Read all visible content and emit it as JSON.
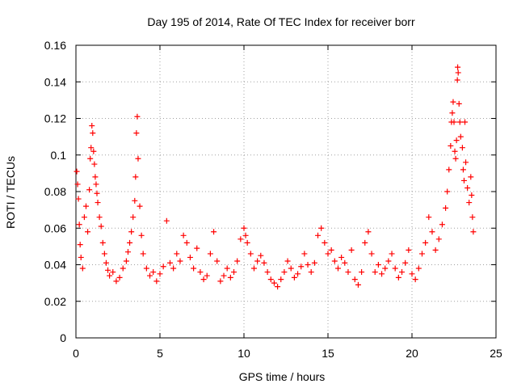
{
  "chart_data": {
    "type": "scatter",
    "title": "Day 195 of 2014, Rate Of TEC Index for receiver borr",
    "xlabel": "GPS time / hours",
    "ylabel": "ROTI / TECUs",
    "xlim": [
      0,
      25
    ],
    "ylim": [
      0,
      0.16
    ],
    "xticks": [
      0,
      5,
      10,
      15,
      20,
      25
    ],
    "xtick_labels": [
      "0",
      "5",
      "10",
      "15",
      "20",
      "25"
    ],
    "yticks": [
      0,
      0.02,
      0.04,
      0.06,
      0.08,
      0.1,
      0.12,
      0.14,
      0.16
    ],
    "ytick_labels": [
      "0",
      "0.02",
      "0.04",
      "0.06",
      "0.08",
      "0.1",
      "0.12",
      "0.14",
      "0.16"
    ],
    "grid": true,
    "marker": "+",
    "color": "#ff0000",
    "series": [
      {
        "name": "ROTI",
        "points": [
          [
            0.05,
            0.091
          ],
          [
            0.1,
            0.084
          ],
          [
            0.15,
            0.076
          ],
          [
            0.2,
            0.062
          ],
          [
            0.25,
            0.051
          ],
          [
            0.3,
            0.044
          ],
          [
            0.4,
            0.038
          ],
          [
            0.5,
            0.066
          ],
          [
            0.6,
            0.072
          ],
          [
            0.7,
            0.058
          ],
          [
            0.8,
            0.081
          ],
          [
            0.85,
            0.098
          ],
          [
            0.9,
            0.104
          ],
          [
            0.95,
            0.116
          ],
          [
            1.0,
            0.112
          ],
          [
            1.05,
            0.102
          ],
          [
            1.1,
            0.095
          ],
          [
            1.15,
            0.088
          ],
          [
            1.2,
            0.084
          ],
          [
            1.25,
            0.079
          ],
          [
            1.3,
            0.074
          ],
          [
            1.4,
            0.066
          ],
          [
            1.5,
            0.061
          ],
          [
            1.6,
            0.052
          ],
          [
            1.7,
            0.046
          ],
          [
            1.8,
            0.041
          ],
          [
            1.9,
            0.037
          ],
          [
            2.0,
            0.034
          ],
          [
            2.2,
            0.036
          ],
          [
            2.4,
            0.031
          ],
          [
            2.6,
            0.033
          ],
          [
            2.8,
            0.038
          ],
          [
            3.0,
            0.042
          ],
          [
            3.1,
            0.047
          ],
          [
            3.2,
            0.052
          ],
          [
            3.3,
            0.058
          ],
          [
            3.4,
            0.066
          ],
          [
            3.5,
            0.075
          ],
          [
            3.55,
            0.088
          ],
          [
            3.6,
            0.112
          ],
          [
            3.65,
            0.121
          ],
          [
            3.7,
            0.098
          ],
          [
            3.8,
            0.072
          ],
          [
            3.9,
            0.056
          ],
          [
            4.0,
            0.046
          ],
          [
            4.2,
            0.038
          ],
          [
            4.4,
            0.034
          ],
          [
            4.6,
            0.036
          ],
          [
            4.8,
            0.031
          ],
          [
            5.0,
            0.035
          ],
          [
            5.2,
            0.039
          ],
          [
            5.4,
            0.064
          ],
          [
            5.6,
            0.041
          ],
          [
            5.8,
            0.038
          ],
          [
            6.0,
            0.046
          ],
          [
            6.2,
            0.042
          ],
          [
            6.4,
            0.056
          ],
          [
            6.6,
            0.052
          ],
          [
            6.8,
            0.044
          ],
          [
            7.0,
            0.038
          ],
          [
            7.2,
            0.049
          ],
          [
            7.4,
            0.036
          ],
          [
            7.6,
            0.032
          ],
          [
            7.8,
            0.034
          ],
          [
            8.0,
            0.046
          ],
          [
            8.2,
            0.058
          ],
          [
            8.4,
            0.042
          ],
          [
            8.6,
            0.031
          ],
          [
            8.8,
            0.034
          ],
          [
            9.0,
            0.038
          ],
          [
            9.2,
            0.033
          ],
          [
            9.4,
            0.036
          ],
          [
            9.6,
            0.042
          ],
          [
            9.8,
            0.054
          ],
          [
            10.0,
            0.06
          ],
          [
            10.1,
            0.056
          ],
          [
            10.2,
            0.052
          ],
          [
            10.4,
            0.046
          ],
          [
            10.6,
            0.038
          ],
          [
            10.8,
            0.042
          ],
          [
            11.0,
            0.045
          ],
          [
            11.2,
            0.041
          ],
          [
            11.4,
            0.036
          ],
          [
            11.6,
            0.032
          ],
          [
            11.8,
            0.03
          ],
          [
            12.0,
            0.028
          ],
          [
            12.2,
            0.032
          ],
          [
            12.4,
            0.036
          ],
          [
            12.6,
            0.042
          ],
          [
            12.8,
            0.038
          ],
          [
            13.0,
            0.033
          ],
          [
            13.2,
            0.035
          ],
          [
            13.4,
            0.039
          ],
          [
            13.6,
            0.046
          ],
          [
            13.8,
            0.04
          ],
          [
            14.0,
            0.036
          ],
          [
            14.2,
            0.041
          ],
          [
            14.4,
            0.056
          ],
          [
            14.6,
            0.06
          ],
          [
            14.8,
            0.052
          ],
          [
            15.0,
            0.046
          ],
          [
            15.2,
            0.048
          ],
          [
            15.4,
            0.042
          ],
          [
            15.6,
            0.038
          ],
          [
            15.8,
            0.044
          ],
          [
            16.0,
            0.041
          ],
          [
            16.2,
            0.036
          ],
          [
            16.4,
            0.048
          ],
          [
            16.6,
            0.032
          ],
          [
            16.8,
            0.029
          ],
          [
            17.0,
            0.036
          ],
          [
            17.2,
            0.052
          ],
          [
            17.4,
            0.058
          ],
          [
            17.6,
            0.046
          ],
          [
            17.8,
            0.036
          ],
          [
            18.0,
            0.04
          ],
          [
            18.2,
            0.035
          ],
          [
            18.4,
            0.038
          ],
          [
            18.6,
            0.042
          ],
          [
            18.8,
            0.046
          ],
          [
            19.0,
            0.038
          ],
          [
            19.2,
            0.033
          ],
          [
            19.4,
            0.036
          ],
          [
            19.6,
            0.041
          ],
          [
            19.8,
            0.048
          ],
          [
            20.0,
            0.035
          ],
          [
            20.2,
            0.032
          ],
          [
            20.4,
            0.038
          ],
          [
            20.6,
            0.046
          ],
          [
            20.8,
            0.052
          ],
          [
            21.0,
            0.066
          ],
          [
            21.2,
            0.058
          ],
          [
            21.4,
            0.048
          ],
          [
            21.6,
            0.054
          ],
          [
            21.8,
            0.062
          ],
          [
            22.0,
            0.071
          ],
          [
            22.1,
            0.08
          ],
          [
            22.2,
            0.092
          ],
          [
            22.3,
            0.105
          ],
          [
            22.35,
            0.118
          ],
          [
            22.4,
            0.123
          ],
          [
            22.45,
            0.129
          ],
          [
            22.5,
            0.118
          ],
          [
            22.55,
            0.102
          ],
          [
            22.6,
            0.098
          ],
          [
            22.65,
            0.108
          ],
          [
            22.7,
            0.141
          ],
          [
            22.72,
            0.148
          ],
          [
            22.75,
            0.145
          ],
          [
            22.8,
            0.128
          ],
          [
            22.85,
            0.118
          ],
          [
            22.9,
            0.11
          ],
          [
            23.0,
            0.104
          ],
          [
            23.05,
            0.092
          ],
          [
            23.1,
            0.086
          ],
          [
            23.15,
            0.118
          ],
          [
            23.2,
            0.096
          ],
          [
            23.3,
            0.082
          ],
          [
            23.4,
            0.074
          ],
          [
            23.5,
            0.088
          ],
          [
            23.55,
            0.078
          ],
          [
            23.6,
            0.066
          ],
          [
            23.65,
            0.058
          ]
        ]
      }
    ]
  }
}
